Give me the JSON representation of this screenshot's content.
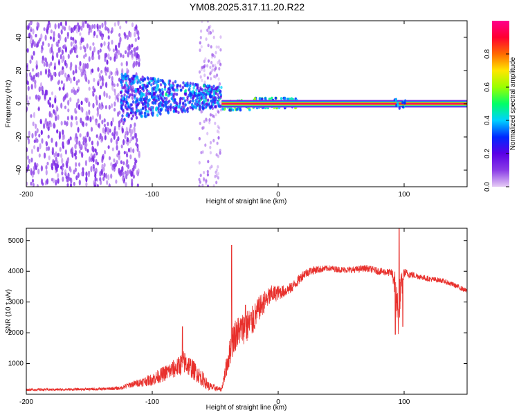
{
  "title": "YM08.2025.317.11.20.R22",
  "chart_data": [
    {
      "type": "heatmap",
      "xlabel": "Height of straight line (km)",
      "ylabel": "Frequency (Hz)",
      "xlim": [
        -200,
        150
      ],
      "ylim": [
        -50,
        50
      ],
      "xticks": [
        -200,
        -100,
        0,
        100
      ],
      "xtick_labels": [
        "-200",
        "-100",
        "0",
        "100"
      ],
      "yticks": [
        -40,
        -20,
        0,
        20,
        40
      ],
      "ytick_labels": [
        "-40",
        "-20",
        "0",
        "20",
        "40"
      ],
      "colorbar": {
        "label": "Normalized spectral amplitude",
        "range": [
          0,
          1
        ],
        "ticks": [
          0,
          0.2,
          0.4,
          0.6,
          0.8
        ],
        "tick_labels": [
          "0.0",
          "0.2",
          "0.4",
          "0.6",
          "0.8"
        ],
        "colormap": [
          "#e6ccf5",
          "#8a3ce6",
          "#5a00e6",
          "#0028ff",
          "#00d2ff",
          "#00ff66",
          "#9aff00",
          "#ffe600",
          "#ff6a00",
          "#ff0030",
          "#ff008c"
        ]
      },
      "features": [
        {
          "name": "broadband-noise",
          "x_range": [
            -200,
            -110
          ],
          "freq_range": [
            -50,
            50
          ],
          "amplitude": 0.12
        },
        {
          "name": "noise-band",
          "x_range": [
            -63,
            -45
          ],
          "freq_range": [
            -50,
            50
          ],
          "amplitude": 0.1
        },
        {
          "name": "signal-onset",
          "x_range": [
            -125,
            -45
          ],
          "freq_range": [
            -8,
            22
          ],
          "amplitude": 0.3
        },
        {
          "name": "tone",
          "x_range": [
            -45,
            150
          ],
          "freq_center": 0,
          "amplitude": 0.95
        }
      ]
    },
    {
      "type": "line",
      "xlabel": "Height of straight line (km)",
      "ylabel": "SNR (10 * v/v)",
      "xlim": [
        -200,
        150
      ],
      "ylim": [
        0,
        5400
      ],
      "xticks": [
        -200,
        -100,
        0,
        100
      ],
      "xtick_labels": [
        "-200",
        "-100",
        "0",
        "100"
      ],
      "yticks": [
        1000,
        2000,
        3000,
        4000,
        5000
      ],
      "ytick_labels": [
        "1000",
        "2000",
        "3000",
        "4000",
        "5000"
      ],
      "color": "#e8302c",
      "series": [
        {
          "name": "SNR",
          "x": [
            -200,
            -180,
            -160,
            -140,
            -125,
            -120,
            -110,
            -100,
            -90,
            -80,
            -75,
            -70,
            -60,
            -55,
            -45,
            -40,
            -35,
            -30,
            -25,
            -20,
            -15,
            -10,
            -5,
            0,
            5,
            10,
            15,
            20,
            25,
            30,
            40,
            50,
            60,
            70,
            80,
            90,
            93,
            95,
            97,
            100,
            110,
            120,
            130,
            140,
            150
          ],
          "values": [
            150,
            150,
            160,
            170,
            200,
            280,
            380,
            480,
            680,
            880,
            1050,
            900,
            500,
            250,
            150,
            1100,
            1900,
            2100,
            2200,
            2400,
            2800,
            3050,
            3250,
            3300,
            3350,
            3450,
            3650,
            3900,
            4000,
            4050,
            4100,
            4050,
            4050,
            4100,
            4000,
            3950,
            3600,
            2600,
            3300,
            3950,
            3850,
            3750,
            3700,
            3550,
            3350
          ],
          "noise": [
            40,
            40,
            40,
            45,
            60,
            90,
            130,
            200,
            260,
            320,
            380,
            350,
            250,
            150,
            60,
            400,
            550,
            500,
            550,
            500,
            400,
            350,
            300,
            250,
            200,
            180,
            170,
            160,
            140,
            130,
            100,
            100,
            110,
            110,
            120,
            120,
            500,
            900,
            600,
            150,
            100,
            90,
            80,
            80,
            80
          ],
          "spikes": [
            {
              "x": -76,
              "value": 2200
            },
            {
              "x": -37,
              "value": 4850
            },
            {
              "x": -26,
              "value": 2900
            },
            {
              "x": 96,
              "value": 5450
            },
            {
              "x": 93,
              "value": 1950
            },
            {
              "x": 99,
              "value": 2200
            }
          ]
        }
      ]
    }
  ]
}
